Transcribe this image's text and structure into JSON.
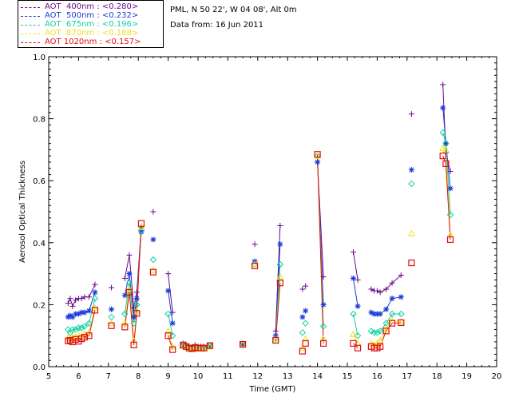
{
  "header": {
    "location": "PML, N 50 22', W 04 08', Alt 0m",
    "date": "Data from: 16 Jun 2011"
  },
  "chart_data": {
    "type": "scatter",
    "title": "",
    "xlabel": "Time (GMT)",
    "ylabel": "Aerosol Optical Thickness",
    "xlim": [
      5,
      20
    ],
    "ylim": [
      0.0,
      1.0
    ],
    "xticks": [
      "5",
      "6",
      "7",
      "8",
      "9",
      "10",
      "11",
      "12",
      "13",
      "14",
      "15",
      "16",
      "17",
      "18",
      "19",
      "20"
    ],
    "yticks": [
      "0.0",
      "0.2",
      "0.4",
      "0.6",
      "0.8",
      "1.0"
    ],
    "legend_position": "top-left-outside",
    "series": [
      {
        "name": "AOT  400nm : <0.280>",
        "color": "#6a0a8c",
        "marker": "plus",
        "x": [
          5.65,
          5.72,
          5.8,
          5.9,
          6.0,
          6.1,
          6.2,
          6.35,
          6.55,
          7.1,
          7.55,
          7.7,
          7.85,
          7.95,
          8.1,
          8.5,
          9.0,
          9.15,
          9.5,
          9.6,
          9.7,
          9.8,
          9.9,
          10.0,
          10.1,
          10.2,
          10.4,
          11.5,
          11.9,
          12.6,
          12.75,
          13.5,
          13.6,
          14.0,
          14.2,
          15.2,
          15.35,
          15.8,
          15.9,
          16.0,
          16.1,
          16.3,
          16.5,
          16.8,
          17.15,
          18.2,
          18.3,
          18.45
        ],
        "y": [
          0.205,
          0.22,
          0.195,
          0.215,
          0.22,
          0.22,
          0.225,
          0.225,
          0.265,
          0.255,
          0.285,
          0.36,
          0.19,
          0.24,
          0.45,
          0.5,
          0.3,
          0.175,
          0.075,
          0.072,
          0.065,
          0.062,
          0.07,
          0.065,
          0.065,
          0.065,
          0.07,
          0.075,
          0.395,
          0.115,
          0.455,
          0.25,
          0.26,
          0.66,
          0.29,
          0.37,
          0.28,
          0.25,
          0.245,
          0.245,
          0.24,
          0.25,
          0.27,
          0.295,
          0.815,
          0.91,
          0.69,
          0.63
        ]
      },
      {
        "name": "AOT  500nm : <0.232>",
        "color": "#1a3cd6",
        "marker": "asterisk",
        "x": [
          5.65,
          5.72,
          5.8,
          5.9,
          6.0,
          6.1,
          6.2,
          6.35,
          6.55,
          7.1,
          7.55,
          7.7,
          7.85,
          7.95,
          8.1,
          8.5,
          9.0,
          9.15,
          9.5,
          9.6,
          9.7,
          9.8,
          9.9,
          10.0,
          10.1,
          10.2,
          10.4,
          11.5,
          11.9,
          12.6,
          12.75,
          13.5,
          13.6,
          14.0,
          14.2,
          15.2,
          15.35,
          15.8,
          15.9,
          16.0,
          16.1,
          16.3,
          16.5,
          16.8,
          17.15,
          18.2,
          18.3,
          18.45
        ],
        "y": [
          0.16,
          0.165,
          0.16,
          0.17,
          0.17,
          0.175,
          0.175,
          0.18,
          0.24,
          0.185,
          0.23,
          0.3,
          0.16,
          0.22,
          0.435,
          0.41,
          0.245,
          0.14,
          0.07,
          0.068,
          0.062,
          0.06,
          0.065,
          0.062,
          0.062,
          0.062,
          0.068,
          0.072,
          0.34,
          0.1,
          0.395,
          0.16,
          0.18,
          0.66,
          0.2,
          0.285,
          0.195,
          0.175,
          0.17,
          0.17,
          0.17,
          0.185,
          0.22,
          0.225,
          0.635,
          0.835,
          0.72,
          0.575
        ]
      },
      {
        "name": "AOT  675nm : <0.196>",
        "color": "#10d0a0",
        "marker": "diamond",
        "x": [
          5.65,
          5.72,
          5.8,
          5.9,
          6.0,
          6.1,
          6.2,
          6.35,
          6.55,
          7.1,
          7.55,
          7.7,
          7.85,
          7.95,
          8.1,
          8.5,
          9.0,
          9.15,
          9.5,
          9.6,
          9.7,
          9.8,
          9.9,
          10.0,
          10.1,
          10.2,
          10.4,
          11.5,
          11.9,
          12.6,
          12.75,
          13.5,
          13.6,
          14.0,
          14.2,
          15.2,
          15.35,
          15.8,
          15.9,
          16.0,
          16.1,
          16.3,
          16.5,
          16.8,
          17.15,
          18.2,
          18.3,
          18.45
        ],
        "y": [
          0.12,
          0.11,
          0.12,
          0.12,
          0.125,
          0.125,
          0.13,
          0.14,
          0.22,
          0.16,
          0.17,
          0.27,
          0.14,
          0.2,
          0.44,
          0.345,
          0.17,
          0.1,
          0.068,
          0.065,
          0.06,
          0.058,
          0.063,
          0.06,
          0.06,
          0.06,
          0.066,
          0.07,
          0.33,
          0.09,
          0.33,
          0.11,
          0.14,
          0.68,
          0.13,
          0.17,
          0.1,
          0.115,
          0.11,
          0.11,
          0.115,
          0.14,
          0.17,
          0.17,
          0.59,
          0.755,
          0.72,
          0.49
        ]
      },
      {
        "name": "AOT  870nm : <0.188>",
        "color": "#f0e020",
        "marker": "triangle",
        "x": [
          5.65,
          5.72,
          5.8,
          5.9,
          6.0,
          6.1,
          6.2,
          6.35,
          6.55,
          7.1,
          7.55,
          7.7,
          7.85,
          7.95,
          8.1,
          8.5,
          9.0,
          9.15,
          9.5,
          9.6,
          9.7,
          9.8,
          9.9,
          10.0,
          10.1,
          10.2,
          10.4,
          11.5,
          11.9,
          12.6,
          12.75,
          13.5,
          13.6,
          14.0,
          14.2,
          15.2,
          15.35,
          15.8,
          15.9,
          16.0,
          16.1,
          16.3,
          16.5,
          16.8,
          17.15,
          18.2,
          18.3,
          18.45
        ],
        "y": [
          0.095,
          0.09,
          0.095,
          0.095,
          0.1,
          0.1,
          0.105,
          0.11,
          0.19,
          0.14,
          0.14,
          0.25,
          0.085,
          0.18,
          0.45,
          0.31,
          0.115,
          0.065,
          0.066,
          0.063,
          0.058,
          0.056,
          0.061,
          0.058,
          0.058,
          0.058,
          0.064,
          0.072,
          0.33,
          0.085,
          0.29,
          0.06,
          0.09,
          0.68,
          0.09,
          0.105,
          0.075,
          0.075,
          0.07,
          0.075,
          0.085,
          0.12,
          0.15,
          0.145,
          0.43,
          0.705,
          0.7,
          0.425
        ]
      },
      {
        "name": "AOT 1020nm : <0.157>",
        "color": "#e01010",
        "marker": "square",
        "x": [
          5.65,
          5.72,
          5.8,
          5.9,
          6.0,
          6.1,
          6.2,
          6.35,
          6.55,
          7.1,
          7.55,
          7.7,
          7.85,
          7.95,
          8.1,
          8.5,
          9.0,
          9.15,
          9.5,
          9.6,
          9.7,
          9.8,
          9.9,
          10.0,
          10.1,
          10.2,
          10.4,
          11.5,
          11.9,
          12.6,
          12.75,
          13.5,
          13.6,
          14.0,
          14.2,
          15.2,
          15.35,
          15.8,
          15.9,
          16.0,
          16.1,
          16.3,
          16.5,
          16.8,
          17.15,
          18.2,
          18.3,
          18.45
        ],
        "y": [
          0.083,
          0.085,
          0.08,
          0.088,
          0.082,
          0.09,
          0.095,
          0.1,
          0.182,
          0.132,
          0.128,
          0.24,
          0.07,
          0.172,
          0.462,
          0.305,
          0.1,
          0.055,
          0.07,
          0.065,
          0.06,
          0.058,
          0.062,
          0.06,
          0.06,
          0.06,
          0.068,
          0.072,
          0.325,
          0.085,
          0.27,
          0.05,
          0.075,
          0.685,
          0.075,
          0.075,
          0.06,
          0.065,
          0.06,
          0.06,
          0.065,
          0.115,
          0.14,
          0.142,
          0.335,
          0.68,
          0.655,
          0.41
        ]
      }
    ],
    "segments": [
      [
        0,
        8
      ],
      [
        10,
        14
      ],
      [
        16,
        17
      ],
      [
        18,
        26
      ],
      [
        29,
        30
      ],
      [
        33,
        34
      ],
      [
        35,
        36
      ],
      [
        37,
        43
      ],
      [
        45,
        47
      ]
    ]
  }
}
